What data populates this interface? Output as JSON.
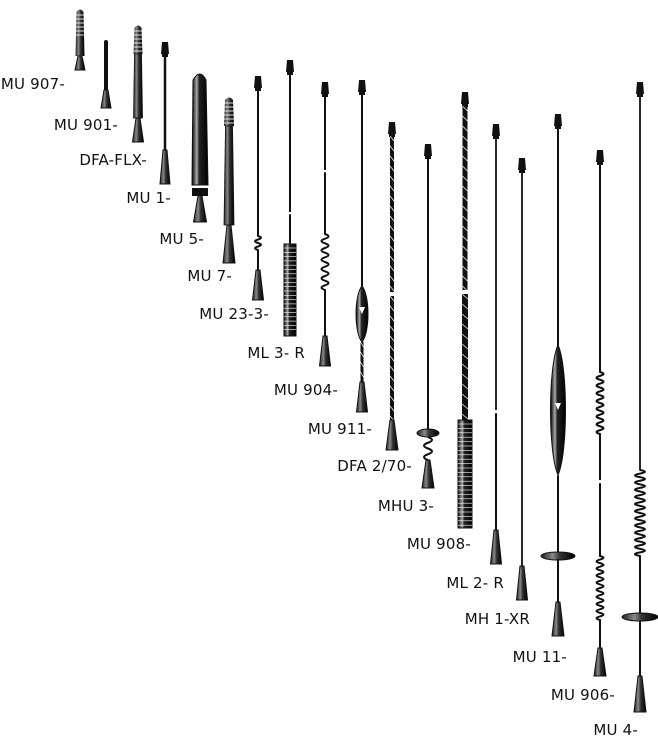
{
  "antennas": [
    {
      "id": "mu907",
      "label": "MU 907-"
    },
    {
      "id": "mu901",
      "label": "MU 901-"
    },
    {
      "id": "dfaflx",
      "label": "DFA-FLX-"
    },
    {
      "id": "mu1",
      "label": "MU 1-"
    },
    {
      "id": "mu5",
      "label": "MU 5-"
    },
    {
      "id": "mu7",
      "label": "MU 7-"
    },
    {
      "id": "mu233",
      "label": "MU 23-3-"
    },
    {
      "id": "ml3r",
      "label": "ML 3- R"
    },
    {
      "id": "mu904",
      "label": "MU 904-"
    },
    {
      "id": "mu911",
      "label": "MU 911-"
    },
    {
      "id": "dfa270",
      "label": "DFA 2/70-"
    },
    {
      "id": "mhu3",
      "label": "MHU 3-"
    },
    {
      "id": "mu908",
      "label": "MU 908-"
    },
    {
      "id": "ml2r",
      "label": "ML 2- R"
    },
    {
      "id": "mh1xr",
      "label": "MH 1-XR"
    },
    {
      "id": "mu11",
      "label": "MU 11-"
    },
    {
      "id": "mu906",
      "label": "MU 906-"
    },
    {
      "id": "mu4",
      "label": "MU 4-"
    }
  ],
  "colors": {
    "ink": "#111111",
    "background": "#ffffff"
  }
}
